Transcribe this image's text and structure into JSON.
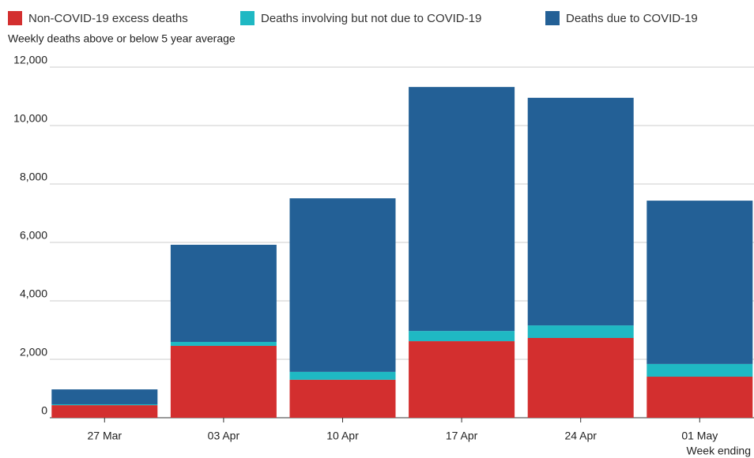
{
  "chart_data": {
    "type": "stacked_bar",
    "subtitle": "Weekly deaths above or below 5 year average",
    "x_label": "Week ending",
    "categories": [
      "27 Mar",
      "03 Apr",
      "10 Apr",
      "17 Apr",
      "24 Apr",
      "01 May"
    ],
    "series": [
      {
        "name": "Non-COVID-19 excess deaths",
        "color": "#d32f2f",
        "values": [
          430,
          2460,
          1300,
          2620,
          2730,
          1405
        ]
      },
      {
        "name": "Deaths involving but not due to COVID-19",
        "color": "#1fb8c3",
        "values": [
          30,
          135,
          270,
          350,
          430,
          435
        ]
      },
      {
        "name": "Deaths due to COVID-19",
        "color": "#236096",
        "values": [
          510,
          3325,
          5940,
          8350,
          7790,
          5590
        ]
      }
    ],
    "ylim": [
      0,
      12000
    ],
    "yticks": [
      0,
      {
        "value": 2000,
        "label": "2,000"
      },
      {
        "value": 4000,
        "label": "4,000"
      },
      {
        "value": 6000,
        "label": "6,000"
      },
      {
        "value": 8000,
        "label": "8,000"
      },
      {
        "value": 10000,
        "label": "10,000"
      },
      {
        "value": 12000,
        "label": "12,000"
      }
    ],
    "grid": true
  }
}
